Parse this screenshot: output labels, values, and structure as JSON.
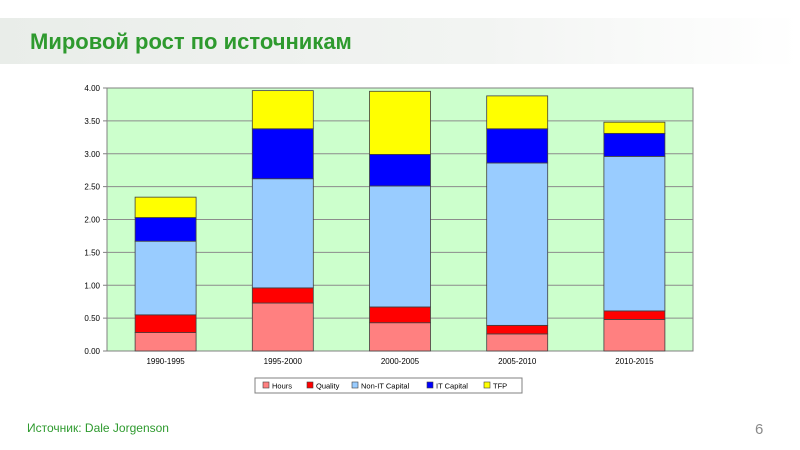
{
  "slide": {
    "title": "Мировой рост по источникам",
    "source_prefix": "Источник: ",
    "source_name": "Dale Jorgenson",
    "page_number": "6"
  },
  "chart_data": {
    "type": "bar",
    "stacked": true,
    "categories": [
      "1990-1995",
      "1995-2000",
      "2000-2005",
      "2005-2010",
      "2010-2015"
    ],
    "series": [
      {
        "name": "Hours",
        "color": "#ff8080",
        "values": [
          0.28,
          0.73,
          0.43,
          0.26,
          0.48
        ]
      },
      {
        "name": "Quality",
        "color": "#ff0000",
        "values": [
          0.27,
          0.23,
          0.24,
          0.13,
          0.13
        ]
      },
      {
        "name": "Non-IT Capital",
        "color": "#99ccff",
        "values": [
          1.12,
          1.66,
          1.84,
          2.47,
          2.35
        ]
      },
      {
        "name": "IT Capital",
        "color": "#0000ff",
        "values": [
          0.36,
          0.76,
          0.48,
          0.52,
          0.35
        ]
      },
      {
        "name": "TFP",
        "color": "#ffff00",
        "values": [
          0.31,
          0.58,
          0.96,
          0.5,
          0.17
        ]
      }
    ],
    "yticks": [
      "0.00",
      "0.50",
      "1.00",
      "1.50",
      "2.00",
      "2.50",
      "3.00",
      "3.50",
      "4.00"
    ],
    "ylim": [
      0,
      4
    ],
    "plot_background": "#ccffcc",
    "grid": true,
    "legend_position": "bottom"
  }
}
